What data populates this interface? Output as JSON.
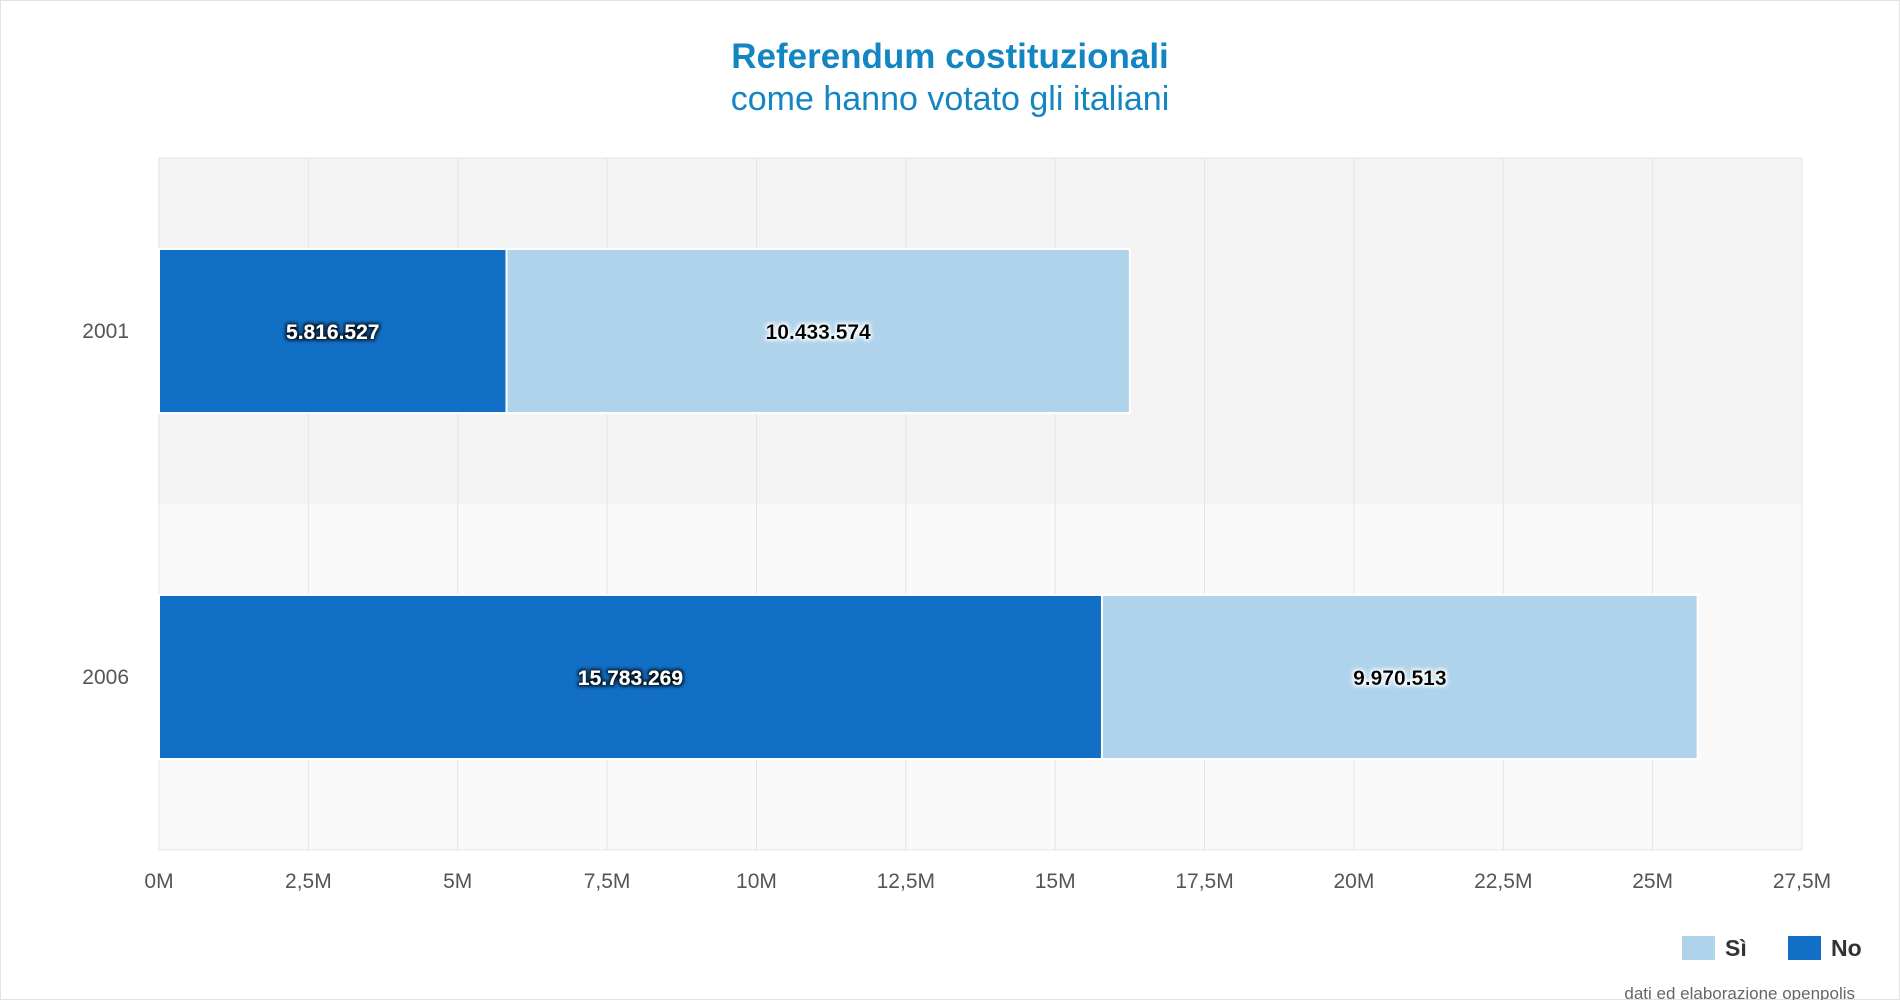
{
  "chart_data": {
    "type": "bar",
    "orientation": "horizontal",
    "stacked": true,
    "title": "Referendum costituzionali",
    "subtitle": "come hanno votato gli italiani",
    "categories": [
      "2001",
      "2006"
    ],
    "series": [
      {
        "name": "No",
        "values": [
          5816527,
          15783269
        ],
        "labels": [
          "5.816.527",
          "15.783.269"
        ],
        "color": "#126fc6",
        "label_color": "#ffffff"
      },
      {
        "name": "Sì",
        "values": [
          10433574,
          9970513
        ],
        "labels": [
          "10.433.574",
          "9.970.513"
        ],
        "color": "#b0d3ec",
        "label_color": "#000000"
      }
    ],
    "legend_order": [
      "Sì",
      "No"
    ],
    "xlim": [
      0,
      27500000
    ],
    "xticks": [
      0,
      2500000,
      5000000,
      7500000,
      10000000,
      12500000,
      15000000,
      17500000,
      20000000,
      22500000,
      25000000,
      27500000
    ],
    "xtick_labels": [
      "0M",
      "2,5M",
      "5M",
      "7,5M",
      "10M",
      "12,5M",
      "15M",
      "17,5M",
      "20M",
      "22,5M",
      "25M",
      "27,5M"
    ],
    "grid": true,
    "legend_position": "bottom-right",
    "credits": "dati ed elaborazione openpolis"
  }
}
